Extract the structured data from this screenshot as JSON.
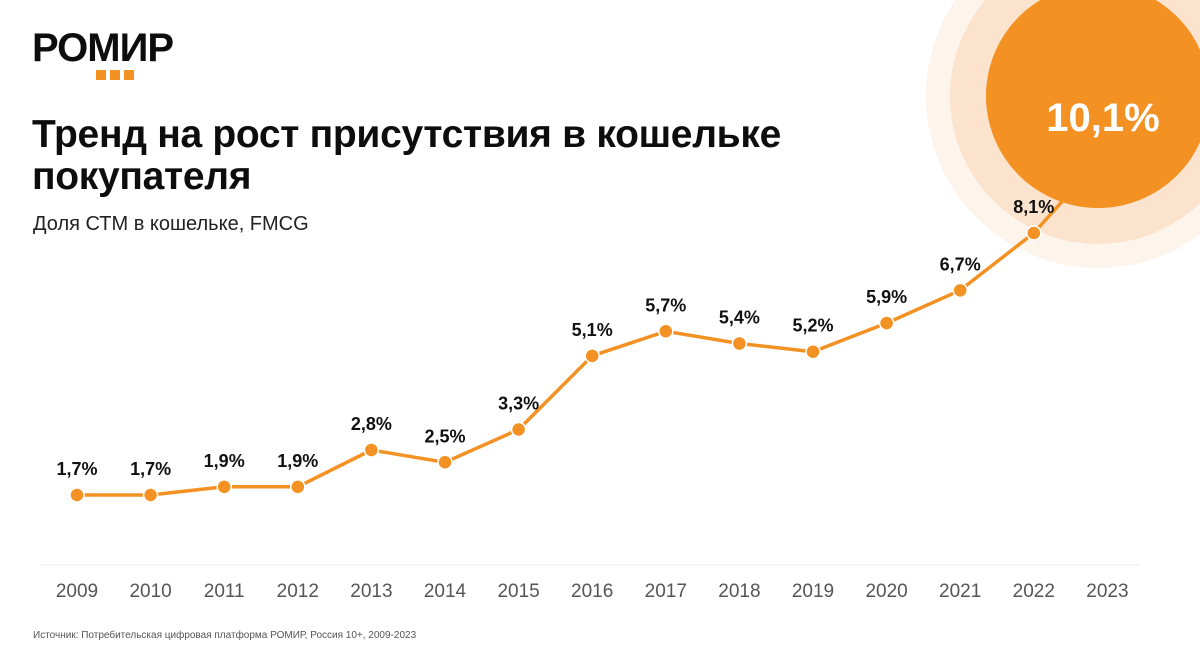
{
  "brand": {
    "name": "РОМИР",
    "accent": "#f39122"
  },
  "header": {
    "title": "Тренд на рост присутствия в кошельке покупателя",
    "subtitle": "Доля СТМ в кошельке, FMCG"
  },
  "footer": {
    "source": "Источник: Потребительская цифровая платформа РОМИР, Россия 10+, 2009-2023"
  },
  "chart_data": {
    "type": "line",
    "title": "Доля СТМ в кошельке, FMCG",
    "xlabel": "",
    "ylabel": "",
    "categories": [
      "2009",
      "2010",
      "2011",
      "2012",
      "2013",
      "2014",
      "2015",
      "2016",
      "2017",
      "2018",
      "2019",
      "2020",
      "2021",
      "2022",
      "2023"
    ],
    "series": [
      {
        "name": "Доля СТМ",
        "values": [
          1.7,
          1.7,
          1.9,
          1.9,
          2.8,
          2.5,
          3.3,
          5.1,
          5.7,
          5.4,
          5.2,
          5.9,
          6.7,
          8.1,
          10.1
        ],
        "labels": [
          "1,7%",
          "1,7%",
          "1,9%",
          "1,9%",
          "2,8%",
          "2,5%",
          "3,3%",
          "5,1%",
          "5,7%",
          "5,4%",
          "5,2%",
          "5,9%",
          "6,7%",
          "8,1%",
          "10,1%"
        ]
      }
    ],
    "highlight": {
      "category": "2023",
      "label": "10,1%"
    },
    "ylim": [
      1.7,
      8.1
    ],
    "grid": false,
    "line_color": "#f39122"
  }
}
